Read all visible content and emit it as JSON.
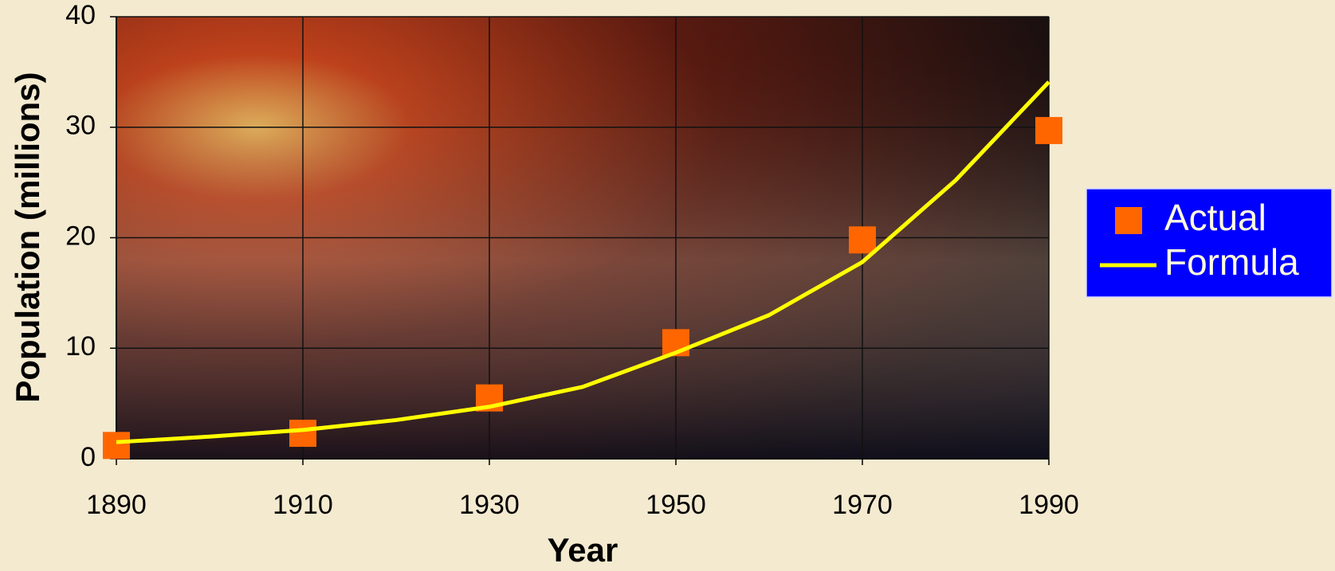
{
  "chart_data": {
    "type": "line",
    "x_label": "Year",
    "y_label": "Population (millions)",
    "xlim": [
      1890,
      1990
    ],
    "xticks": [
      1890,
      1910,
      1930,
      1950,
      1970,
      1990
    ],
    "ylim": [
      0,
      40
    ],
    "yticks": [
      0,
      10,
      20,
      30,
      40
    ],
    "grid": true,
    "legend": "right",
    "series": [
      {
        "name": "Actual",
        "type": "scatter",
        "color": "#ff6600",
        "x": [
          1890,
          1910,
          1930,
          1950,
          1970,
          1990
        ],
        "values": [
          1.2,
          2.3,
          5.5,
          10.5,
          19.8,
          29.7
        ]
      },
      {
        "name": "Formula",
        "type": "line",
        "color": "#ffff00",
        "x": [
          1890,
          1900,
          1910,
          1920,
          1930,
          1940,
          1950,
          1960,
          1970,
          1980,
          1990
        ],
        "values": [
          1.5,
          2.0,
          2.6,
          3.5,
          4.7,
          6.5,
          9.6,
          13.0,
          17.8,
          25.2,
          34.1
        ]
      }
    ]
  }
}
